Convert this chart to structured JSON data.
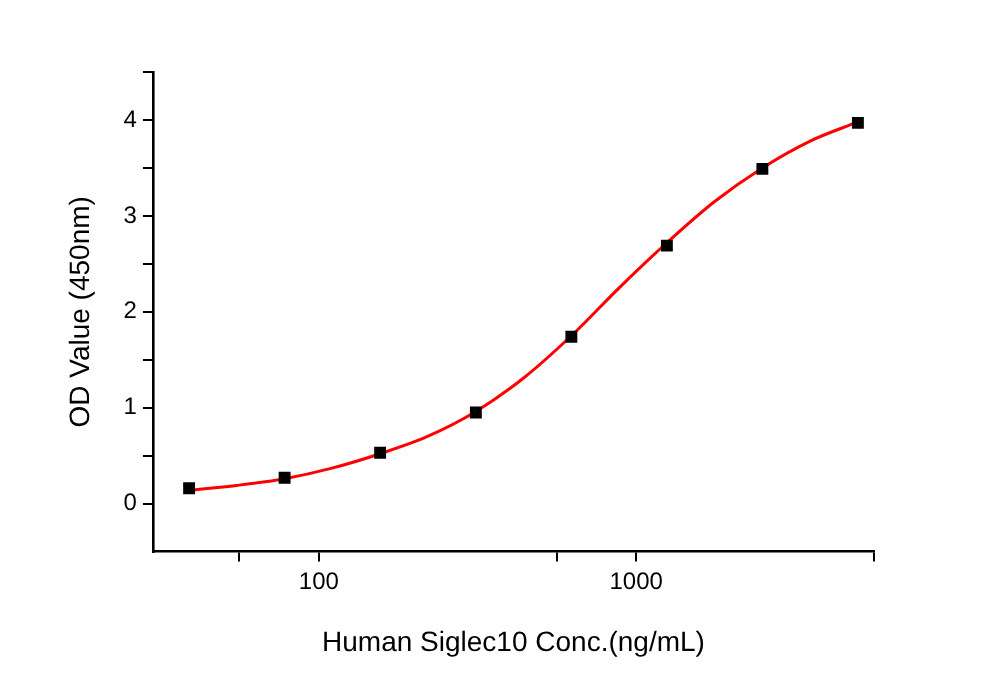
{
  "chart_data": {
    "type": "scatter",
    "xlabel": "Human Siglec10 Conc.(ng/mL)",
    "ylabel": "OD Value (450nm)",
    "log": "x",
    "grid": false,
    "legend": false,
    "marker": "square",
    "xlim": [
      30,
      5620
    ],
    "xticks": [
      {
        "value": 56.2,
        "label": null
      },
      100,
      {
        "value": 562,
        "label": null
      },
      1000,
      {
        "value": 5620,
        "label": null
      }
    ],
    "ylim": [
      -0.5,
      4.5
    ],
    "yticks": [
      0,
      {
        "value": 0.5,
        "label": null
      },
      1,
      {
        "value": 1.5,
        "label": null
      },
      2,
      {
        "value": 2.5,
        "label": null
      },
      3,
      {
        "value": 3.5,
        "label": null
      },
      4,
      {
        "value": 4.5,
        "label": null
      }
    ],
    "series": [
      {
        "color": "#000000",
        "x": [
          39,
          78,
          156,
          312.5,
          625,
          1250,
          2500,
          5000
        ],
        "values": [
          0.16,
          0.27,
          0.53,
          0.95,
          1.74,
          2.69,
          3.49,
          3.97
        ]
      },
      {
        "type": "line",
        "color": "#ff0000",
        "marker": "none",
        "x": [
          39,
          55,
          78,
          110,
          156,
          220,
          312.5,
          442,
          625,
          884,
          1250,
          1768,
          2500,
          3536,
          5000
        ],
        "values": [
          0.14,
          0.19,
          0.26,
          0.37,
          0.52,
          0.7,
          0.96,
          1.31,
          1.75,
          2.25,
          2.72,
          3.15,
          3.5,
          3.78,
          3.98
        ]
      }
    ]
  }
}
